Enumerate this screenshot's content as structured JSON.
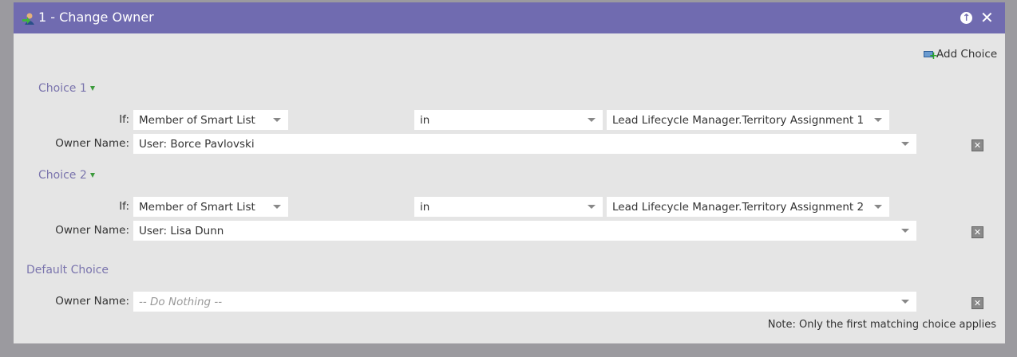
{
  "header": {
    "title": "1 - Change Owner",
    "icon": "change-owner-icon",
    "collapse_icon": "arrow-up-circle-icon",
    "close_icon": "close-icon"
  },
  "add_choice": "Add Choice",
  "choices": [
    {
      "label": "Choice 1",
      "if_label": "If:",
      "field": "Member of Smart List",
      "operator": "in",
      "value": "Lead Lifecycle Manager.Territory Assignment 1",
      "owner_label": "Owner Name:",
      "owner": "User: Borce Pavlovski"
    },
    {
      "label": "Choice 2",
      "if_label": "If:",
      "field": "Member of Smart List",
      "operator": "in",
      "value": "Lead Lifecycle Manager.Territory Assignment 2",
      "owner_label": "Owner Name:",
      "owner": "User: Lisa Dunn"
    }
  ],
  "default": {
    "label": "Default Choice",
    "owner_label": "Owner Name:",
    "placeholder": "-- Do Nothing --"
  },
  "note": "Note: Only the first matching choice applies"
}
